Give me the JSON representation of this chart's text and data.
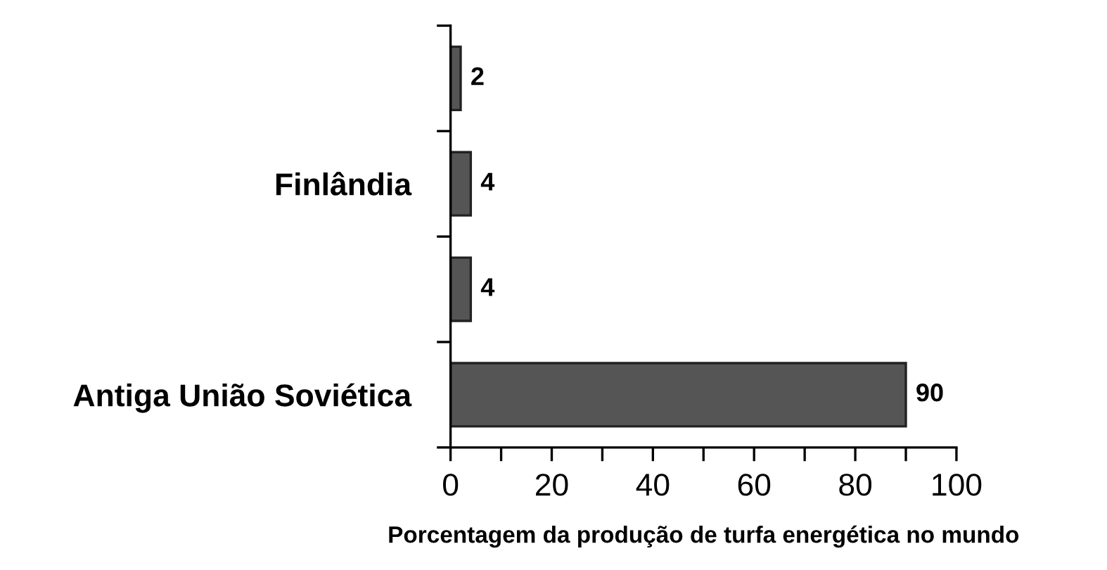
{
  "chart_data": {
    "type": "bar",
    "orientation": "horizontal",
    "categories": [
      null,
      "Finlândia",
      null,
      "Antiga União Soviética"
    ],
    "values": [
      2,
      4,
      4,
      90
    ],
    "color": "#555555",
    "data_labels": true,
    "xlabel": "Porcentagem da produção de turfa energética no mundo",
    "xlim": [
      0,
      100
    ],
    "xticks": [
      0,
      {
        "value": 10,
        "label": null
      },
      20,
      {
        "value": 30,
        "label": null
      },
      40,
      {
        "value": 50,
        "label": null
      },
      60,
      {
        "value": 70,
        "label": null
      },
      80,
      {
        "value": 90,
        "label": null
      },
      100
    ],
    "grid": false,
    "legend": false
  }
}
